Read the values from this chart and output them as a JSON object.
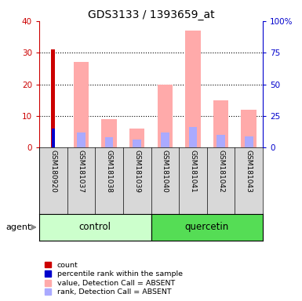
{
  "title": "GDS3133 / 1393659_at",
  "samples": [
    "GSM180920",
    "GSM181037",
    "GSM181038",
    "GSM181039",
    "GSM181040",
    "GSM181041",
    "GSM181042",
    "GSM181043"
  ],
  "count_values": [
    31,
    0,
    0,
    0,
    0,
    0,
    0,
    0
  ],
  "count_color": "#cc0000",
  "percentile_rank_values": [
    15,
    0,
    0,
    0,
    0,
    0,
    0,
    0
  ],
  "percentile_rank_color": "#0000cc",
  "absent_value_values": [
    0,
    27,
    9,
    6,
    20,
    37,
    15,
    12
  ],
  "absent_value_color": "#ffaaaa",
  "absent_rank_values": [
    0,
    12,
    8,
    6,
    12,
    16,
    10,
    9
  ],
  "absent_rank_color": "#aaaaff",
  "ylim_left": [
    0,
    40
  ],
  "ylim_right": [
    0,
    100
  ],
  "yticks_left": [
    0,
    10,
    20,
    30,
    40
  ],
  "yticks_right": [
    0,
    25,
    50,
    75,
    100
  ],
  "yticklabels_right": [
    "0",
    "25",
    "50",
    "75",
    "100%"
  ],
  "left_tick_color": "#cc0000",
  "right_tick_color": "#0000cc",
  "control_color_light": "#ccffcc",
  "control_color": "#ccffcc",
  "quercetin_color": "#55dd55",
  "sample_bg_color": "#d8d8d8",
  "legend_items": [
    {
      "label": "count",
      "color": "#cc0000"
    },
    {
      "label": "percentile rank within the sample",
      "color": "#0000cc"
    },
    {
      "label": "value, Detection Call = ABSENT",
      "color": "#ffaaaa"
    },
    {
      "label": "rank, Detection Call = ABSENT",
      "color": "#aaaaff"
    }
  ]
}
